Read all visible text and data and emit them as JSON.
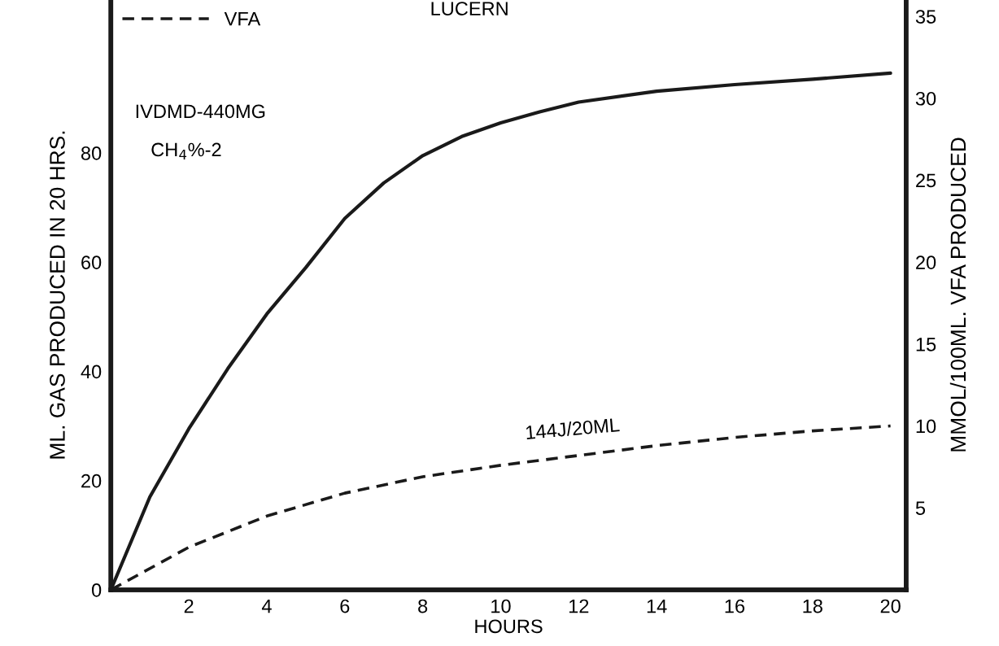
{
  "chart_data": {
    "type": "line",
    "title": "LUCERN",
    "xlabel": "HOURS",
    "ylabel": "ML. GAS PRODUCED IN 20 HRS.",
    "y2label": "MMOL/100ML. VFA PRODUCED",
    "annotations": [
      "IVDMD-440MG",
      "CH$_{4}$%-2",
      "144J/20ML"
    ],
    "series": [
      {
        "color": "#1a1a1a",
        "line_style": "solid",
        "x": [
          0,
          1,
          2,
          3,
          4,
          5,
          6,
          7,
          8,
          9,
          10,
          11,
          12,
          14,
          16,
          18,
          20
        ],
        "values": [
          0,
          17,
          29.5,
          40.5,
          50.5,
          59,
          68,
          74.5,
          79.5,
          83,
          85.5,
          87.5,
          89.3,
          91.3,
          92.5,
          93.5,
          94.6
        ]
      },
      {
        "name": "VFA",
        "color": "#1a1a1a",
        "line_style": "dashed",
        "axis": "y2",
        "x": [
          0,
          2,
          4,
          6,
          8,
          10,
          12,
          14,
          16,
          18,
          20
        ],
        "values": [
          0,
          2.6,
          4.5,
          5.9,
          6.9,
          7.6,
          8.2,
          8.8,
          9.3,
          9.7,
          10
        ]
      }
    ],
    "xlim": [
      0,
      20.4
    ],
    "xticks": [
      2,
      4,
      6,
      8,
      10,
      12,
      14,
      16,
      18,
      20
    ],
    "ylim": [
      0,
      108
    ],
    "yticks": [
      0,
      20,
      40,
      60,
      80
    ],
    "y2lim": [
      0,
      36
    ],
    "y2ticks": [
      5,
      10,
      15,
      20,
      25,
      30,
      35
    ],
    "grid": false,
    "legend": "top left",
    "marker": "none"
  }
}
